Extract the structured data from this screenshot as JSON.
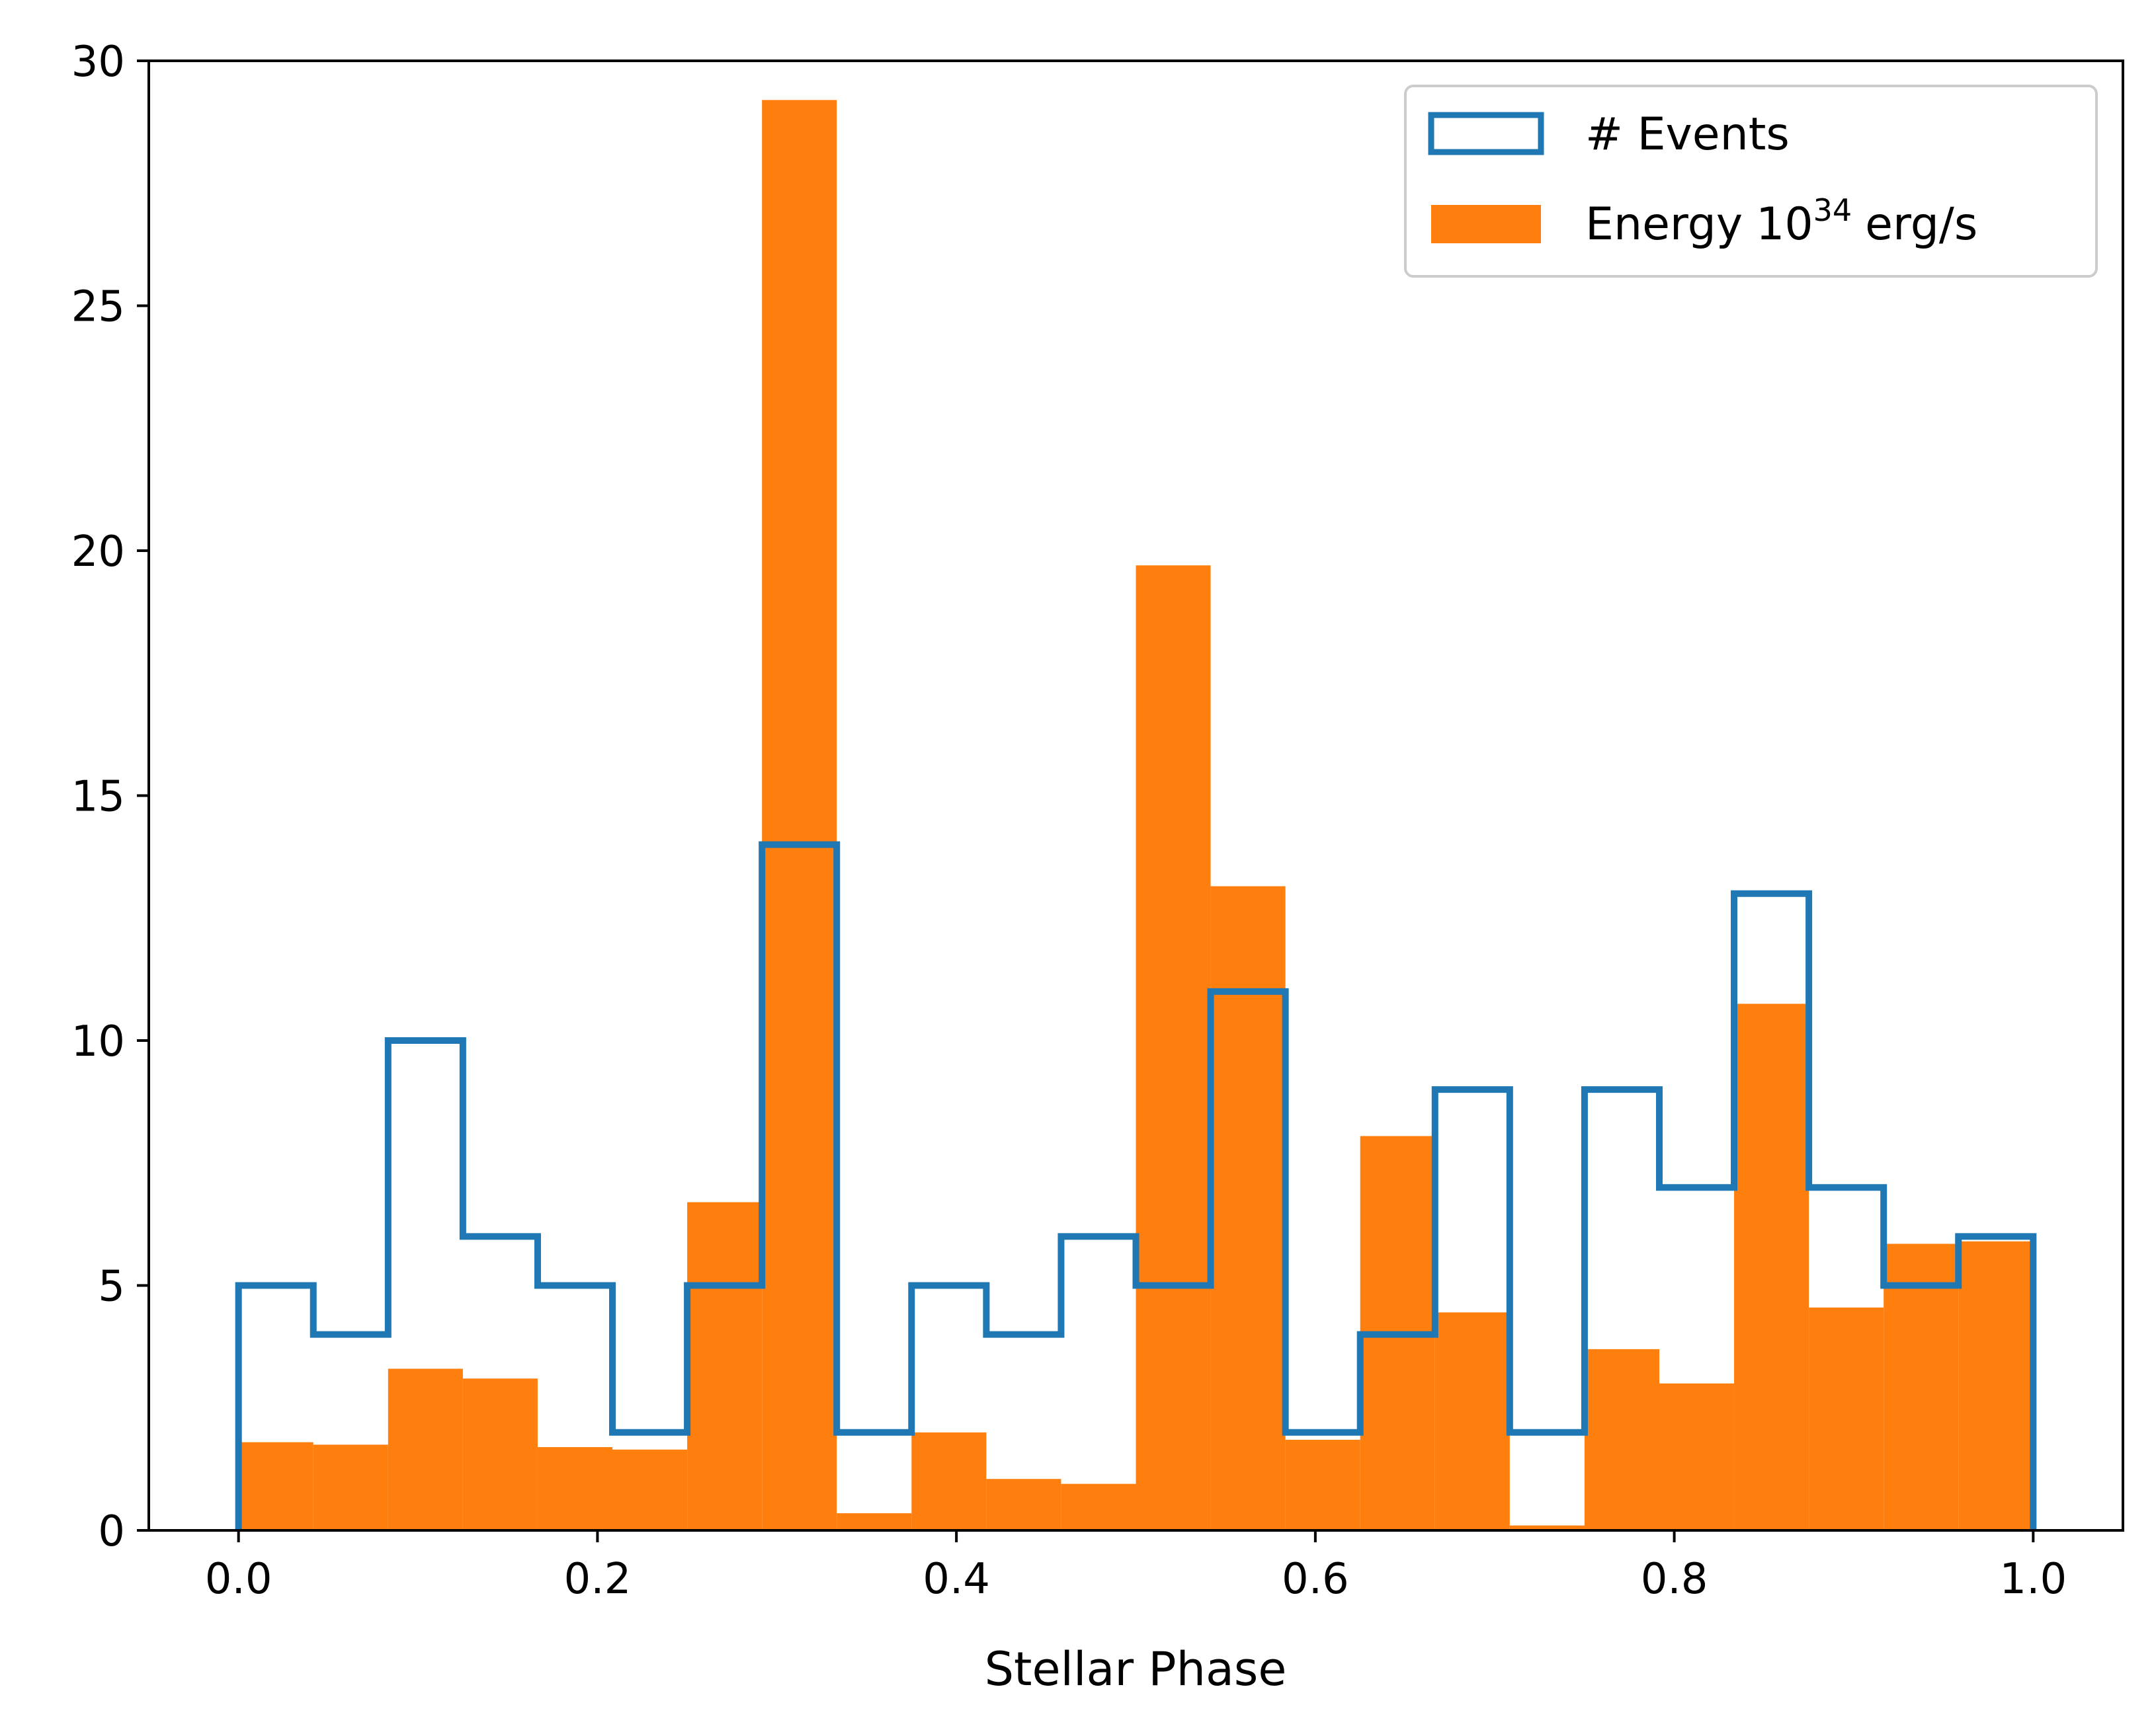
{
  "chart_data": {
    "type": "bar",
    "title": "",
    "xlabel": "Stellar Phase",
    "ylabel": "",
    "xlim": [
      -0.05,
      1.05
    ],
    "ylim": [
      0,
      30
    ],
    "xticks": [
      0.0,
      0.2,
      0.4,
      0.6,
      0.8,
      1.0
    ],
    "xtick_labels": [
      "0.0",
      "0.2",
      "0.4",
      "0.6",
      "0.8",
      "1.0"
    ],
    "yticks": [
      0,
      5,
      10,
      15,
      20,
      25,
      30
    ],
    "ytick_labels": [
      "0",
      "5",
      "10",
      "15",
      "20",
      "25",
      "30"
    ],
    "grid": false,
    "legend_position": "top-right",
    "bin_edges": [
      0.0,
      0.04167,
      0.08333,
      0.125,
      0.16667,
      0.20833,
      0.25,
      0.29167,
      0.33333,
      0.375,
      0.41667,
      0.45833,
      0.5,
      0.54167,
      0.58333,
      0.625,
      0.66667,
      0.70833,
      0.75,
      0.79167,
      0.83333,
      0.875,
      0.91667,
      0.95833,
      1.0
    ],
    "series": [
      {
        "name": "# Events",
        "style": "step",
        "color": "#1f77b4",
        "values": [
          5,
          4,
          10,
          6,
          5,
          2,
          5,
          14,
          2,
          5,
          4,
          6,
          5,
          11,
          2,
          4,
          9,
          2,
          9,
          7,
          13,
          7,
          5,
          6
        ]
      },
      {
        "name": "Energy",
        "legend_base": "10",
        "legend_exponent": "34",
        "legend_unit": "erg/s",
        "style": "filled",
        "color": "#ff7f0e",
        "values": [
          1.8,
          1.75,
          3.3,
          3.1,
          1.7,
          1.65,
          6.7,
          29.2,
          0.35,
          2.0,
          1.05,
          0.95,
          19.7,
          13.15,
          1.85,
          8.05,
          4.45,
          0.1,
          3.7,
          3.0,
          10.75,
          4.55,
          5.85,
          5.9
        ]
      }
    ]
  }
}
